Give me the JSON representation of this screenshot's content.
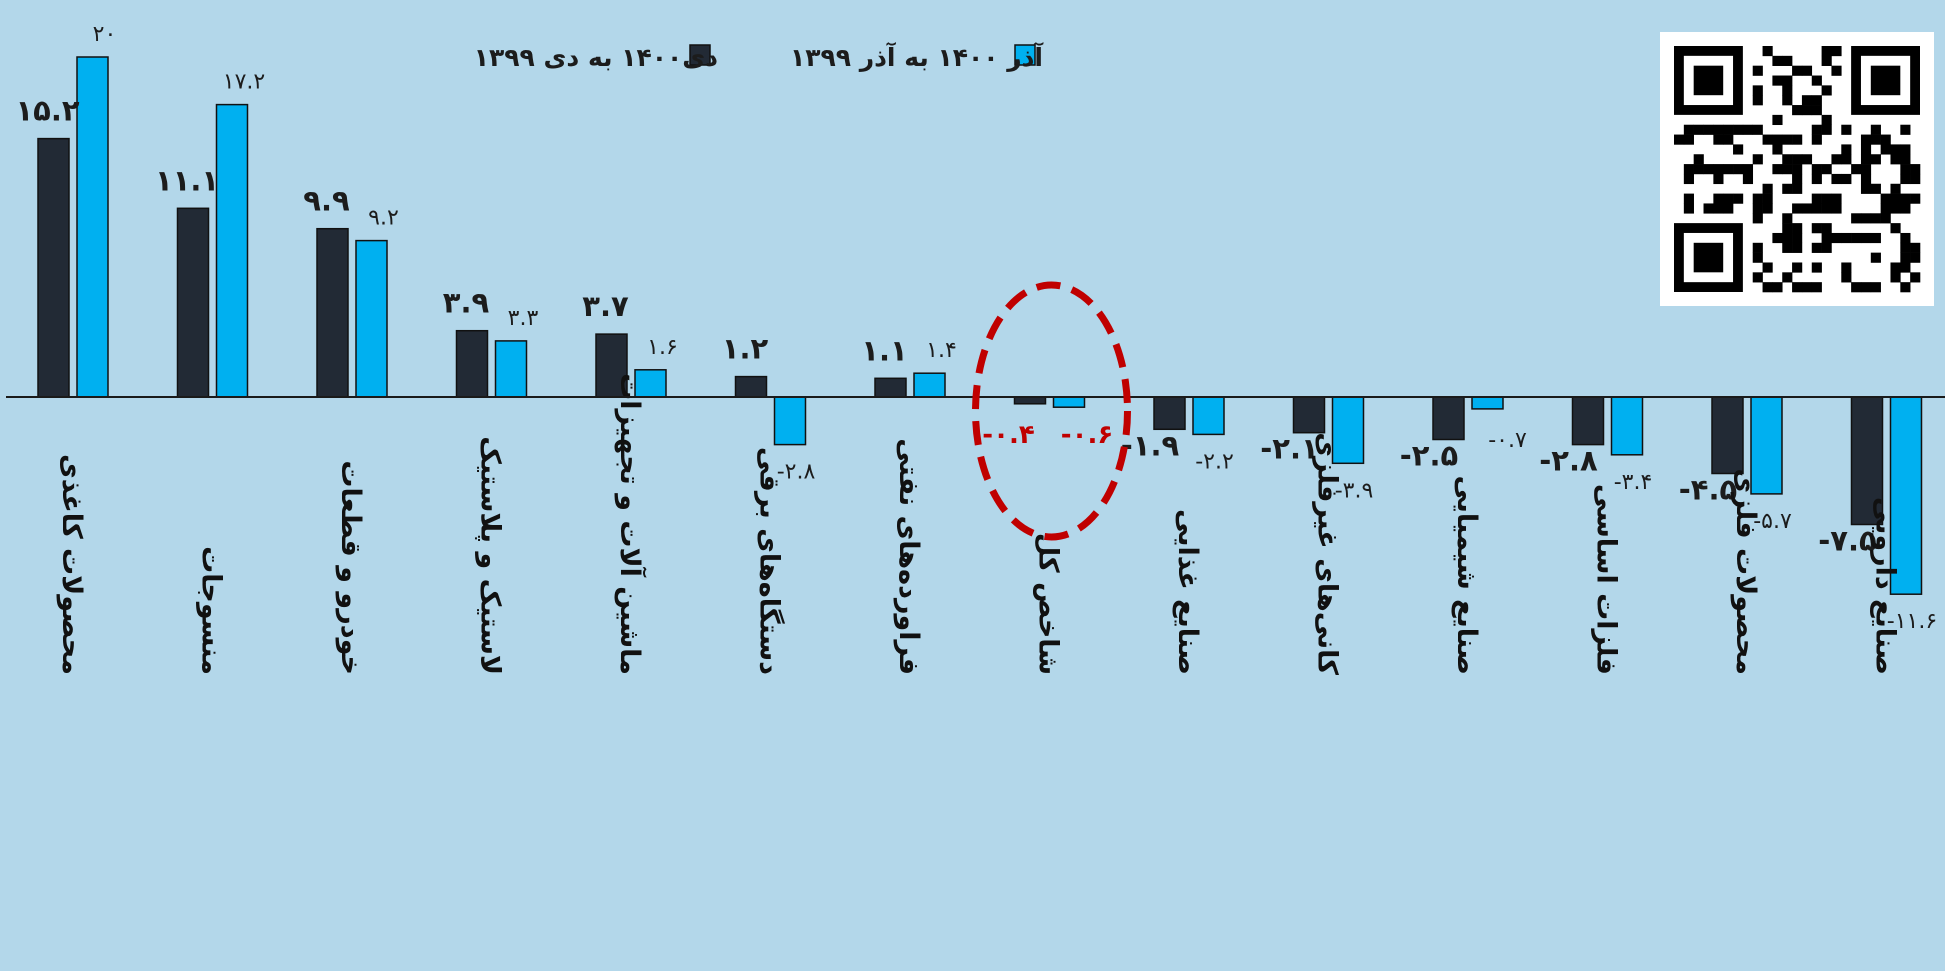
{
  "chart_data": {
    "type": "bar",
    "categories": [
      "محصولات کاغذی",
      "منسوجات",
      "خودرو و قطعات",
      "لاستیک و پلاستیک",
      "ماشین آلات و تجهیزات",
      "دستگاه‌های برقی",
      "فراورده‌های نفتی",
      "شاخص کل",
      "صنایع غذایی",
      "کانی‌های غیرفلزی",
      "صنایع شیمیایی",
      "فلزات اساسی",
      "محصولات فلزی",
      "صنایع دارویی"
    ],
    "series": [
      {
        "name": "دی۱۴۰۰ به دی ۱۳۹۹",
        "color": "#222a35",
        "values": [
          15.2,
          11.1,
          9.9,
          3.9,
          3.7,
          1.2,
          1.1,
          -0.4,
          -1.9,
          -2.1,
          -2.5,
          -2.8,
          -4.5,
          -7.5
        ],
        "labels": [
          "۱۵.۲",
          "۱۱.۱",
          "۹.۹",
          "۳.۹",
          "۳.۷",
          "۱.۲",
          "۱.۱",
          "-۰.۴",
          "-۱.۹",
          "-۲.۱",
          "-۲.۵",
          "-۲.۸",
          "-۴.۵",
          "-۷.۵"
        ]
      },
      {
        "name": "آذر ۱۴۰۰ به آذر ۱۳۹۹",
        "color": "#00b0f0",
        "values": [
          20,
          17.2,
          9.2,
          3.3,
          1.6,
          -2.8,
          1.4,
          -0.6,
          -2.2,
          -3.9,
          -0.7,
          -3.4,
          -5.7,
          -11.6
        ],
        "labels": [
          "۲۰",
          "۱۷.۲",
          "۹.۲",
          "۳.۳",
          "۱.۶",
          "-۲.۸",
          "۱.۴",
          "-۰.۶",
          "-۲.۲",
          "-۳.۹",
          "-۰.۷",
          "-۳.۴",
          "-۵.۷",
          "-۱۱.۶"
        ]
      }
    ],
    "highlight_category": "شاخص کل",
    "highlight_color": "#c00000",
    "legend_position": "top-center",
    "grid": false,
    "ylim": [
      -12,
      20
    ],
    "qr_code_present": true
  }
}
